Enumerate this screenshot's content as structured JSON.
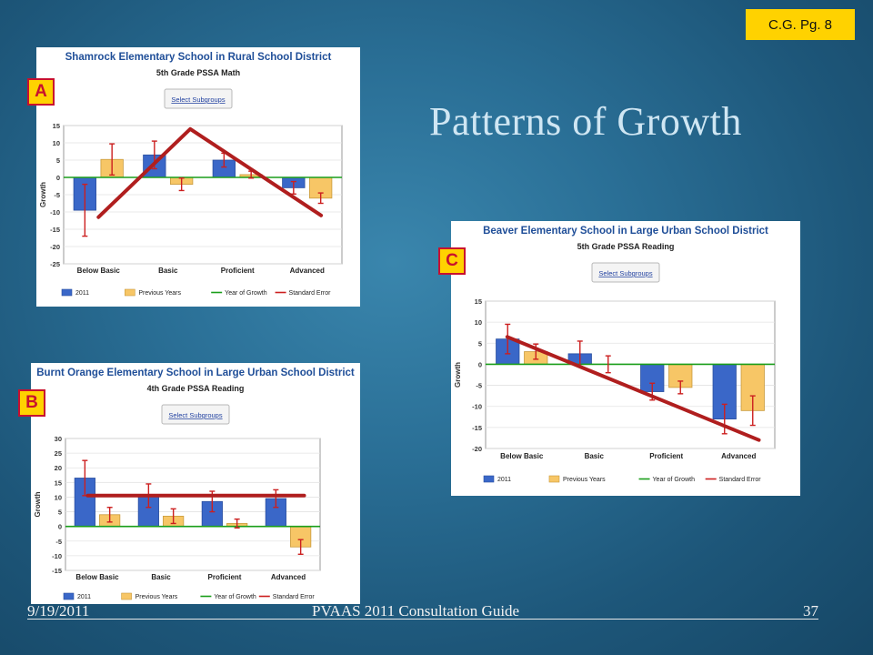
{
  "slide": {
    "title": "Patterns of Growth",
    "ref_tag": "C.G. Pg. 8",
    "footer_date": "9/19/2011",
    "footer_center": "PVAAS 2011 Consultation Guide",
    "footer_page": "37"
  },
  "colors": {
    "bar_2011": "#3a67c8",
    "bar_previous": "#f7c666",
    "growth_line": "#1a9e1a",
    "error_bar": "#cc1f1f",
    "trend_line": "#b01e1e",
    "tag_bg": "#ffd200",
    "title_blue": "#1f4e98"
  },
  "chart_data": [
    {
      "label": "A",
      "type": "bar",
      "title": "Shamrock Elementary School in Rural School District",
      "subtitle": "5th Grade PSSA Math",
      "button": "Select Subgroups",
      "ylabel": "Growth",
      "ylim": [
        -25,
        15
      ],
      "yticks": [
        15,
        10,
        5,
        0,
        -5,
        -10,
        -15,
        -20,
        -25
      ],
      "categories": [
        "Below Basic",
        "Basic",
        "Proficient",
        "Advanced"
      ],
      "series": [
        {
          "name": "2011",
          "values": [
            -9.5,
            6.5,
            5,
            -3
          ],
          "error": [
            7.5,
            4,
            2,
            1.8
          ]
        },
        {
          "name": "Previous Years",
          "values": [
            5.2,
            -2,
            0.8,
            -6
          ],
          "error": [
            4.5,
            1.8,
            1,
            1.5
          ]
        }
      ],
      "legend": [
        "2011",
        "Previous Years",
        "Year of Growth",
        "Standard Error"
      ],
      "trend": [
        [
          0,
          -11.5
        ],
        [
          1.32,
          14
        ],
        [
          3.2,
          -11
        ]
      ]
    },
    {
      "label": "B",
      "type": "bar",
      "title": "Burnt Orange Elementary School in Large Urban School District",
      "subtitle": "4th Grade PSSA Reading",
      "button": "Select Subgroups",
      "ylabel": "Growth",
      "ylim": [
        -15,
        30
      ],
      "yticks": [
        30,
        25,
        20,
        15,
        10,
        5,
        0,
        -5,
        -10,
        -15
      ],
      "categories": [
        "Below Basic",
        "Basic",
        "Proficient",
        "Advanced"
      ],
      "series": [
        {
          "name": "2011",
          "values": [
            16.5,
            10.5,
            8.5,
            9.5
          ],
          "error": [
            6,
            4,
            3.5,
            3
          ]
        },
        {
          "name": "Previous Years",
          "values": [
            4,
            3.5,
            1,
            -7
          ],
          "error": [
            2.5,
            2.5,
            1.5,
            2.5
          ]
        }
      ],
      "legend": [
        "2011",
        "Previous Years",
        "Year of Growth",
        "Standard Error"
      ],
      "trend": [
        [
          -0.15,
          10.5
        ],
        [
          3.25,
          10.5
        ]
      ]
    },
    {
      "label": "C",
      "type": "bar",
      "title": "Beaver Elementary School in Large Urban School District",
      "subtitle": "5th Grade PSSA Reading",
      "button": "Select Subgroups",
      "ylabel": "Growth",
      "ylim": [
        -20,
        15
      ],
      "yticks": [
        15,
        10,
        5,
        0,
        -5,
        -10,
        -15,
        -20
      ],
      "categories": [
        "Below Basic",
        "Basic",
        "Proficient",
        "Advanced"
      ],
      "series": [
        {
          "name": "2011",
          "values": [
            6,
            2.5,
            -6.5,
            -13
          ],
          "error": [
            3.5,
            3,
            2,
            3.5
          ]
        },
        {
          "name": "Previous Years",
          "values": [
            3,
            0,
            -5.5,
            -11
          ],
          "error": [
            1.8,
            2,
            1.5,
            3.5
          ]
        }
      ],
      "legend": [
        "2011",
        "Previous Years",
        "Year of Growth",
        "Standard Error"
      ],
      "trend": [
        [
          -0.2,
          6.5
        ],
        [
          3.28,
          -18
        ]
      ]
    }
  ]
}
